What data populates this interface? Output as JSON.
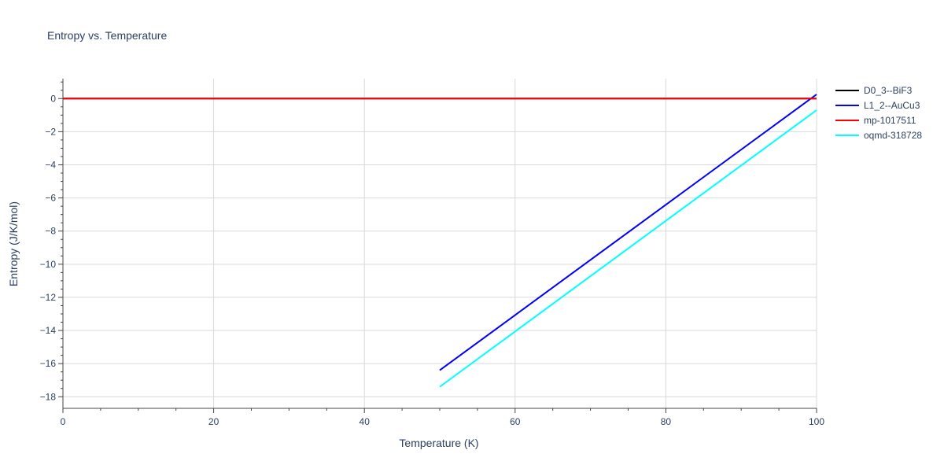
{
  "chart_data": {
    "type": "line",
    "title": "Entropy vs. Temperature",
    "xlabel": "Temperature (K)",
    "ylabel": "Entropy (J/K/mol)",
    "xlim": [
      0,
      100
    ],
    "ylim": [
      -18.7,
      1.2
    ],
    "x_ticks": [
      0,
      20,
      40,
      60,
      80,
      100
    ],
    "x_tick_labels": [
      "0",
      "20",
      "40",
      "60",
      "80",
      "100"
    ],
    "y_ticks": [
      0,
      -2,
      -4,
      -6,
      -8,
      -10,
      -12,
      -14,
      -16,
      -18
    ],
    "y_tick_labels": [
      "0",
      "−2",
      "−4",
      "−6",
      "−8",
      "−10",
      "−12",
      "−14",
      "−16",
      "−18"
    ],
    "grid": true,
    "legend_position": "top-right",
    "series": [
      {
        "name": "D0_3--BiF3",
        "color": "#000000",
        "x": [
          0,
          100
        ],
        "y": [
          0,
          0
        ]
      },
      {
        "name": "L1_2--AuCu3",
        "color": "#0000ff",
        "x": [
          50,
          100
        ],
        "y": [
          -16.4,
          0.25
        ]
      },
      {
        "name": "mp-1017511",
        "color": "#ff0000",
        "x": [
          0,
          100
        ],
        "y": [
          0,
          0
        ]
      },
      {
        "name": "oqmd-318728",
        "color": "#00ffff",
        "x": [
          50,
          100
        ],
        "y": [
          -17.4,
          -0.7
        ]
      }
    ]
  }
}
